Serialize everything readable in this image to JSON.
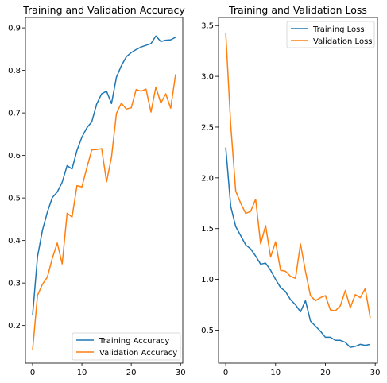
{
  "chart_data": [
    {
      "type": "line",
      "title": "Training and Validation Accuracy",
      "xlabel": "",
      "ylabel": "",
      "xlim": [
        -1.45,
        30.45
      ],
      "ylim": [
        0.1115,
        0.9245
      ],
      "xticks": [
        0,
        10,
        20,
        30
      ],
      "yticks": [
        0.2,
        0.3,
        0.4,
        0.5,
        0.6,
        0.7,
        0.8,
        0.9
      ],
      "grid": false,
      "legend_position": "lower right",
      "x": [
        0,
        1,
        2,
        3,
        4,
        5,
        6,
        7,
        8,
        9,
        10,
        11,
        12,
        13,
        14,
        15,
        16,
        17,
        18,
        19,
        20,
        21,
        22,
        23,
        24,
        25,
        26,
        27,
        28,
        29
      ],
      "series": [
        {
          "name": "Training Accuracy",
          "color": "#1f77b4",
          "values": [
            0.224,
            0.362,
            0.424,
            0.467,
            0.501,
            0.514,
            0.537,
            0.576,
            0.568,
            0.612,
            0.643,
            0.665,
            0.679,
            0.721,
            0.745,
            0.751,
            0.722,
            0.784,
            0.811,
            0.832,
            0.842,
            0.849,
            0.855,
            0.859,
            0.863,
            0.881,
            0.868,
            0.871,
            0.872,
            0.878
          ]
        },
        {
          "name": "Validation Accuracy",
          "color": "#ff7f0e",
          "values": [
            0.142,
            0.271,
            0.297,
            0.314,
            0.358,
            0.394,
            0.345,
            0.464,
            0.455,
            0.529,
            0.526,
            0.571,
            0.613,
            0.614,
            0.616,
            0.538,
            0.596,
            0.699,
            0.723,
            0.709,
            0.712,
            0.755,
            0.751,
            0.756,
            0.702,
            0.761,
            0.723,
            0.745,
            0.711,
            0.791
          ]
        }
      ]
    },
    {
      "type": "line",
      "title": "Training and Validation Loss",
      "xlabel": "",
      "ylabel": "",
      "xlim": [
        -1.45,
        30.45
      ],
      "ylim": [
        0.175,
        3.58
      ],
      "xticks": [
        0,
        10,
        20,
        30
      ],
      "yticks": [
        0.5,
        1.0,
        1.5,
        2.0,
        2.5,
        3.0,
        3.5
      ],
      "ytick_labels": [
        "0.5",
        "1.0",
        "1.5",
        "2.0",
        "2.5",
        "3.0",
        "3.5"
      ],
      "grid": false,
      "legend_position": "upper right",
      "x": [
        0,
        1,
        2,
        3,
        4,
        5,
        6,
        7,
        8,
        9,
        10,
        11,
        12,
        13,
        14,
        15,
        16,
        17,
        18,
        19,
        20,
        21,
        22,
        23,
        24,
        25,
        26,
        27,
        28,
        29
      ],
      "series": [
        {
          "name": "Training Loss",
          "color": "#1f77b4",
          "values": [
            2.3,
            1.72,
            1.52,
            1.43,
            1.34,
            1.3,
            1.23,
            1.15,
            1.16,
            1.09,
            1.0,
            0.92,
            0.88,
            0.8,
            0.75,
            0.68,
            0.79,
            0.59,
            0.54,
            0.49,
            0.43,
            0.43,
            0.4,
            0.4,
            0.38,
            0.33,
            0.34,
            0.36,
            0.35,
            0.36
          ]
        },
        {
          "name": "Validation Loss",
          "color": "#ff7f0e",
          "values": [
            3.43,
            2.52,
            1.87,
            1.75,
            1.65,
            1.67,
            1.79,
            1.35,
            1.53,
            1.22,
            1.37,
            1.09,
            1.08,
            1.03,
            1.01,
            1.35,
            1.08,
            0.84,
            0.79,
            0.82,
            0.84,
            0.7,
            0.69,
            0.74,
            0.89,
            0.72,
            0.85,
            0.82,
            0.91,
            0.62
          ]
        }
      ]
    }
  ]
}
